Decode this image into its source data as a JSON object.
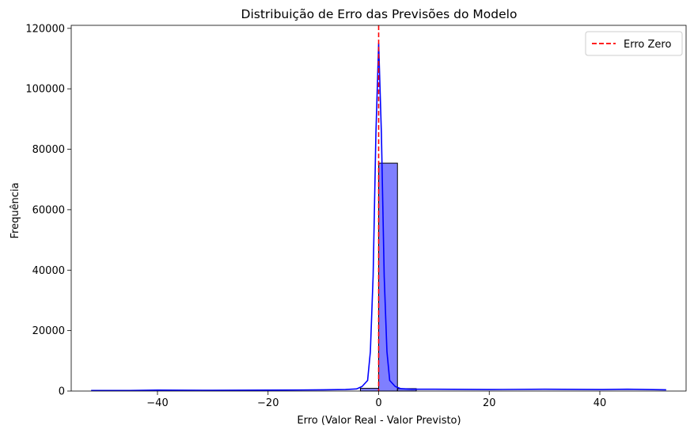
{
  "chart_data": {
    "type": "histogram",
    "title": "Distribuição de Erro das Previsões do Modelo",
    "xlabel": "Erro (Valor Real - Valor Previsto)",
    "ylabel": "Frequência",
    "xlim": [
      -55.6,
      55.6
    ],
    "ylim": [
      0,
      121000
    ],
    "xticks": [
      -40,
      -20,
      0,
      20,
      40
    ],
    "yticks": [
      0,
      20000,
      40000,
      60000,
      80000,
      100000,
      120000
    ],
    "grid": false,
    "legend": {
      "placement": "top-right",
      "entries": [
        {
          "label": "Erro Zero",
          "style": "dashed",
          "color": "#ff0000"
        }
      ]
    },
    "histogram": {
      "color": "#0000ff",
      "bins": [
        {
          "x0": -3.3,
          "x1": 0.0,
          "count": 900
        },
        {
          "x0": 0.0,
          "x1": 3.4,
          "count": 75400
        },
        {
          "x0": 3.4,
          "x1": 6.8,
          "count": 800
        }
      ]
    },
    "kde": {
      "color": "#0000ff",
      "x": [
        -52,
        -45,
        -40,
        -30,
        -20,
        -10,
        -6,
        -4,
        -3,
        -2,
        -1.5,
        -1,
        -0.5,
        0,
        0.5,
        1,
        1.5,
        2,
        3,
        4,
        6,
        10,
        20,
        30,
        40,
        45,
        52
      ],
      "y": [
        200,
        200,
        300,
        250,
        300,
        400,
        500,
        700,
        1500,
        3500,
        13000,
        38000,
        85000,
        115000,
        85000,
        38000,
        13000,
        3500,
        1500,
        800,
        600,
        600,
        500,
        600,
        500,
        600,
        400
      ]
    },
    "vline": {
      "x": 0,
      "label": "Erro Zero",
      "color": "#ff0000",
      "style": "dashed"
    }
  }
}
